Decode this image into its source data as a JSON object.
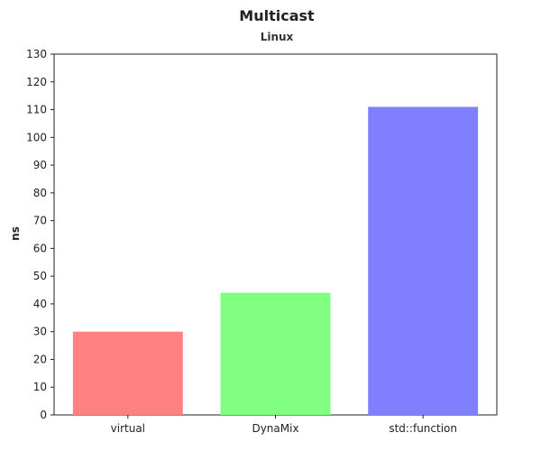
{
  "chart_data": {
    "type": "bar",
    "title": "Multicast",
    "subtitle": "Linux",
    "xlabel": "",
    "ylabel": "ns",
    "categories": [
      "virtual",
      "DynaMix",
      "std::function"
    ],
    "values": [
      30,
      44,
      111
    ],
    "colors": [
      "#ff8080",
      "#80ff80",
      "#8080ff"
    ],
    "ylim": [
      0,
      130
    ],
    "yticks": [
      "0",
      "10",
      "20",
      "30",
      "40",
      "50",
      "60",
      "70",
      "80",
      "90",
      "100",
      "110",
      "120",
      "130"
    ],
    "grid": false,
    "legend": "none"
  }
}
